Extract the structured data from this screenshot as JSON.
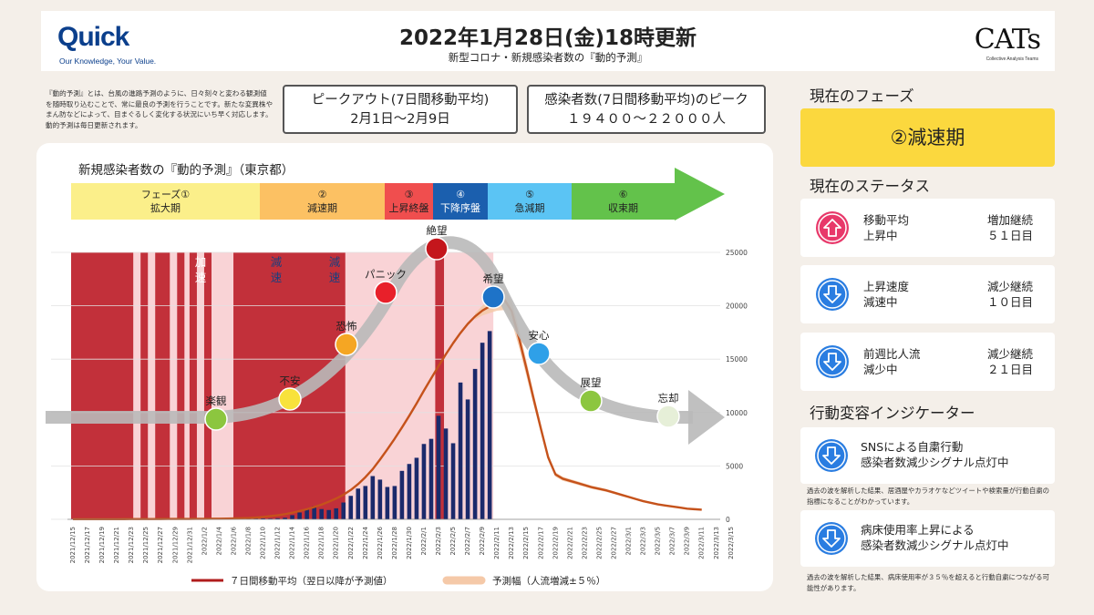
{
  "header": {
    "logo_quick": "Quick",
    "logo_quick_tagline": "Our Knowledge, Your Value.",
    "logo_cats": "CATs",
    "logo_cats_tagline": "Collective Analysis Teams",
    "title": "2022年1月28日(金)18時更新",
    "subtitle": "新型コロナ・新規感染者数の『動的予測』"
  },
  "description": "『動的予測』とは、台風の進路予測のように、日々刻々と変わる観測値を随時取り込むことで、常に最良の予測を行うことです。新たな変異株やまん防などによって、目まぐるしく変化する状況にいち早く対応します。動的予測は毎日更新されます。",
  "peak_out": {
    "line1": "ピークアウト(7日間移動平均)",
    "line2": "2月1日〜2月9日"
  },
  "peak_value": {
    "line1": "感染者数(7日間移動平均)のピーク",
    "line2": "１９４００〜２２０００人"
  },
  "right_panel": {
    "phase_heading": "現在のフェーズ",
    "phase_current": "②減速期",
    "status_heading": "現在のステータス",
    "statuses": [
      {
        "label1": "移動平均",
        "label2": "上昇中",
        "value1": "増加継続",
        "value2": "５１日目",
        "icon": "up-arrow-icon",
        "color": "#e8386a"
      },
      {
        "label1": "上昇速度",
        "label2": "減速中",
        "value1": "減少継続",
        "value2": "１０日目",
        "icon": "down-arrow-icon",
        "color": "#2a7de1"
      },
      {
        "label1": "前週比人流",
        "label2": "減少中",
        "value1": "減少継続",
        "value2": "２１日目",
        "icon": "down-arrow-icon",
        "color": "#2a7de1"
      }
    ],
    "indicator_heading": "行動変容インジケーター",
    "indicators": [
      {
        "label1": "SNSによる自粛行動",
        "label2": "感染者数減少シグナル点灯中",
        "icon": "down-arrow-icon",
        "note": "過去の波を解析した結果、居酒屋やカラオケなどツイートや検索量が行動自粛の指標になることがわかっています。"
      },
      {
        "label1": "病床使用率上昇による",
        "label2": "感染者数減少シグナル点灯中",
        "icon": "down-arrow-icon",
        "note": "過去の波を解析した結果、病床使用率が３５％を超えると行動自粛につながる可能性があります。"
      }
    ]
  },
  "chart_data": {
    "type": "bar",
    "title": "新規感染者数の『動的予測』（東京都）",
    "phases": [
      {
        "l1": "フェーズ①",
        "l2": "拡大期",
        "color": "#fbef8a"
      },
      {
        "l1": "②",
        "l2": "減速期",
        "color": "#fcc163"
      },
      {
        "l1": "③",
        "l2": "上昇終盤",
        "color": "#f04e4e"
      },
      {
        "l1": "④",
        "l2": "下降序盤",
        "color": "#1b5fae"
      },
      {
        "l1": "⑤",
        "l2": "急減期",
        "color": "#5bc4f4"
      },
      {
        "l1": "⑥",
        "l2": "収束期",
        "color": "#63c24b"
      }
    ],
    "zone_labels": [
      "加速",
      "減速",
      "減速"
    ],
    "nodes": [
      {
        "label": "楽観",
        "color": "#8cc63f"
      },
      {
        "label": "不安",
        "color": "#f8e23b"
      },
      {
        "label": "恐怖",
        "color": "#f5a623"
      },
      {
        "label": "パニック",
        "color": "#e8202a"
      },
      {
        "label": "絶望",
        "color": "#c4161c"
      },
      {
        "label": "希望",
        "color": "#1e73c8"
      },
      {
        "label": "安心",
        "color": "#2fa0e8"
      },
      {
        "label": "展望",
        "color": "#8cc63f"
      },
      {
        "label": "忘却",
        "color": "#e6efd8"
      }
    ],
    "x_tick_labels": [
      "2021/12/15",
      "2021/12/17",
      "2021/12/19",
      "2021/12/21",
      "2021/12/23",
      "2021/12/25",
      "2021/12/27",
      "2021/12/29",
      "2021/12/31",
      "2022/1/2",
      "2022/1/4",
      "2022/1/6",
      "2022/1/8",
      "2022/1/10",
      "2022/1/12",
      "2022/1/14",
      "2022/1/16",
      "2022/1/18",
      "2022/1/20",
      "2022/1/22",
      "2022/1/24",
      "2022/1/26",
      "2022/1/28",
      "2022/1/30",
      "2022/2/1",
      "2022/2/3",
      "2022/2/5",
      "2022/2/7",
      "2022/2/9",
      "2022/2/11",
      "2022/2/13",
      "2022/2/15",
      "2022/2/17",
      "2022/2/19",
      "2022/2/21",
      "2022/2/23",
      "2022/2/25",
      "2022/2/27",
      "2022/3/1",
      "2022/3/3",
      "2022/3/5",
      "2022/3/7",
      "2022/3/9",
      "2022/3/11",
      "2022/3/13",
      "2022/3/15"
    ],
    "y_ticks": [
      0,
      5000,
      10000,
      15000,
      20000,
      25000
    ],
    "ylim": [
      0,
      25000
    ],
    "daily_cases": [
      21,
      16,
      19,
      25,
      21,
      26,
      18,
      26,
      36,
      29,
      31,
      35,
      39,
      37,
      53,
      56,
      44,
      44,
      61,
      73,
      76,
      58,
      78,
      104,
      91,
      79,
      84,
      64,
      103,
      151,
      390,
      641,
      922,
      1224,
      962,
      871,
      1032,
      1576,
      2198,
      2879,
      3124,
      4051,
      3719,
      3031,
      3121,
      4539,
      5185,
      5764,
      7058,
      7536,
      9699,
      8503,
      7127,
      12813,
      11227,
      14086,
      16538,
      17631
    ],
    "moving_avg": [
      15,
      15,
      15,
      17,
      18,
      18,
      20,
      22,
      24,
      26,
      27,
      29,
      31,
      34,
      36,
      38,
      41,
      45,
      49,
      55,
      62,
      72,
      85,
      100,
      120,
      160,
      220,
      300,
      380,
      480,
      620,
      780,
      950,
      1150,
      1380,
      1650,
      1950,
      2300,
      2750,
      3300,
      3950,
      4700,
      5600,
      6550,
      7550,
      8600,
      9700,
      10850,
      12050,
      13200,
      14350,
      15450,
      16500,
      17450,
      18300,
      19000,
      19550,
      19950,
      20350,
      20600,
      19500,
      17000,
      14200,
      11300,
      8500,
      5800,
      4200,
      3800,
      3600,
      3400,
      3200,
      3000,
      2850,
      2700,
      2500,
      2300,
      2100,
      1900,
      1700,
      1550,
      1400,
      1300,
      1200,
      1100,
      1000,
      950,
      900
    ],
    "band_pct": 5,
    "legend": [
      {
        "label": "７日間移動平均（翌日以降が予測値）",
        "color": "#b01c1c"
      },
      {
        "label": "予測幅（人流増減±５％）",
        "color": "#f5c9a8"
      }
    ]
  }
}
